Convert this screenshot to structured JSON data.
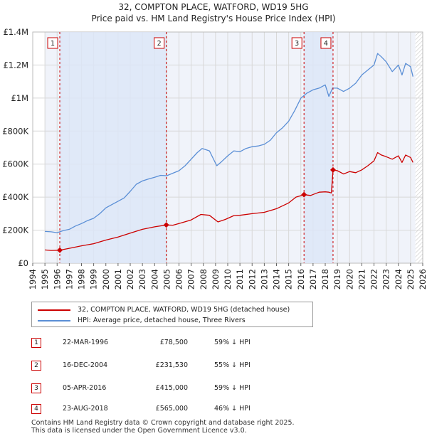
{
  "chart_data": {
    "type": "line",
    "title": "32, COMPTON PLACE, WATFORD, WD19 5HG",
    "subtitle": "Price paid vs. HM Land Registry's House Price Index (HPI)",
    "xlim": [
      1994,
      2026
    ],
    "ylim": [
      0,
      1400000
    ],
    "x_ticks": [
      "1994",
      "1995",
      "1996",
      "1997",
      "1998",
      "1999",
      "2000",
      "2001",
      "2002",
      "2003",
      "2004",
      "2005",
      "2006",
      "2007",
      "2008",
      "2009",
      "2010",
      "2011",
      "2012",
      "2013",
      "2014",
      "2015",
      "2016",
      "2017",
      "2018",
      "2019",
      "2020",
      "2021",
      "2022",
      "2023",
      "2024",
      "2025",
      "2026"
    ],
    "y_ticks": [
      {
        "value": 0,
        "label": "£0"
      },
      {
        "value": 200000,
        "label": "£200K"
      },
      {
        "value": 400000,
        "label": "£400K"
      },
      {
        "value": 600000,
        "label": "£600K"
      },
      {
        "value": 800000,
        "label": "£800K"
      },
      {
        "value": 1000000,
        "label": "£1M"
      },
      {
        "value": 1200000,
        "label": "£1.2M"
      },
      {
        "value": 1400000,
        "label": "£1.4M"
      }
    ],
    "data_start": 1995,
    "data_end": 2025.4,
    "series": [
      {
        "name": "32, COMPTON PLACE, WATFORD, WD19 5HG (detached house)",
        "color": "#cc0000",
        "points": [
          [
            1995,
            80000
          ],
          [
            1995.5,
            77000
          ],
          [
            1996.22,
            78500
          ],
          [
            1997,
            90000
          ],
          [
            1998,
            105000
          ],
          [
            1999,
            118000
          ],
          [
            2000,
            140000
          ],
          [
            2001,
            158000
          ],
          [
            2002,
            182000
          ],
          [
            2003,
            205000
          ],
          [
            2004,
            220000
          ],
          [
            2004.96,
            231530
          ],
          [
            2005.5,
            230000
          ],
          [
            2006,
            240000
          ],
          [
            2007,
            262000
          ],
          [
            2007.8,
            295000
          ],
          [
            2008.5,
            290000
          ],
          [
            2009.2,
            250000
          ],
          [
            2009.8,
            265000
          ],
          [
            2010.5,
            288000
          ],
          [
            2011,
            290000
          ],
          [
            2012,
            300000
          ],
          [
            2013,
            308000
          ],
          [
            2014,
            330000
          ],
          [
            2015,
            365000
          ],
          [
            2015.6,
            400000
          ],
          [
            2016.26,
            415000
          ],
          [
            2016.8,
            410000
          ],
          [
            2017.5,
            430000
          ],
          [
            2018,
            432000
          ],
          [
            2018.3,
            430000
          ],
          [
            2018.5,
            425000
          ],
          [
            2018.64,
            565000
          ],
          [
            2019,
            560000
          ],
          [
            2019.5,
            540000
          ],
          [
            2020,
            555000
          ],
          [
            2020.5,
            548000
          ],
          [
            2021,
            565000
          ],
          [
            2021.5,
            590000
          ],
          [
            2022,
            620000
          ],
          [
            2022.3,
            670000
          ],
          [
            2022.6,
            655000
          ],
          [
            2023,
            645000
          ],
          [
            2023.5,
            630000
          ],
          [
            2024,
            650000
          ],
          [
            2024.3,
            610000
          ],
          [
            2024.6,
            655000
          ],
          [
            2025,
            640000
          ],
          [
            2025.2,
            610000
          ]
        ]
      },
      {
        "name": "HPI: Average price, detached house, Three Rivers",
        "color": "#5b8fd6",
        "points": [
          [
            1995,
            192000
          ],
          [
            1995.5,
            190000
          ],
          [
            1996,
            185000
          ],
          [
            1996.5,
            197000
          ],
          [
            1997,
            205000
          ],
          [
            1997.5,
            225000
          ],
          [
            1998,
            240000
          ],
          [
            1998.5,
            258000
          ],
          [
            1999,
            272000
          ],
          [
            1999.5,
            300000
          ],
          [
            2000,
            335000
          ],
          [
            2000.5,
            355000
          ],
          [
            2001,
            375000
          ],
          [
            2001.5,
            395000
          ],
          [
            2002,
            435000
          ],
          [
            2002.5,
            478000
          ],
          [
            2003,
            498000
          ],
          [
            2003.5,
            510000
          ],
          [
            2004,
            520000
          ],
          [
            2004.5,
            532000
          ],
          [
            2005,
            530000
          ],
          [
            2005.5,
            545000
          ],
          [
            2006,
            560000
          ],
          [
            2006.5,
            590000
          ],
          [
            2007,
            630000
          ],
          [
            2007.5,
            670000
          ],
          [
            2007.9,
            695000
          ],
          [
            2008.5,
            680000
          ],
          [
            2009.1,
            590000
          ],
          [
            2009.5,
            615000
          ],
          [
            2010,
            650000
          ],
          [
            2010.5,
            680000
          ],
          [
            2011,
            675000
          ],
          [
            2011.5,
            695000
          ],
          [
            2012,
            705000
          ],
          [
            2012.5,
            710000
          ],
          [
            2013,
            720000
          ],
          [
            2013.5,
            745000
          ],
          [
            2014,
            790000
          ],
          [
            2014.5,
            820000
          ],
          [
            2015,
            860000
          ],
          [
            2015.5,
            925000
          ],
          [
            2016,
            1000000
          ],
          [
            2016.5,
            1030000
          ],
          [
            2017,
            1050000
          ],
          [
            2017.5,
            1060000
          ],
          [
            2018,
            1080000
          ],
          [
            2018.3,
            1010000
          ],
          [
            2018.6,
            1060000
          ],
          [
            2019,
            1060000
          ],
          [
            2019.5,
            1040000
          ],
          [
            2020,
            1060000
          ],
          [
            2020.5,
            1090000
          ],
          [
            2021,
            1140000
          ],
          [
            2021.5,
            1170000
          ],
          [
            2022,
            1200000
          ],
          [
            2022.3,
            1270000
          ],
          [
            2022.6,
            1250000
          ],
          [
            2023,
            1220000
          ],
          [
            2023.5,
            1160000
          ],
          [
            2024,
            1200000
          ],
          [
            2024.3,
            1140000
          ],
          [
            2024.6,
            1210000
          ],
          [
            2025,
            1190000
          ],
          [
            2025.2,
            1130000
          ]
        ]
      }
    ],
    "sales": [
      {
        "num": "1",
        "date": "22-MAR-1996",
        "price": "£78,500",
        "hpi": "59% ↓ HPI",
        "x": 1996.22,
        "y": 78500
      },
      {
        "num": "2",
        "date": "16-DEC-2004",
        "price": "£231,530",
        "hpi": "55% ↓ HPI",
        "x": 2004.96,
        "y": 231530
      },
      {
        "num": "3",
        "date": "05-APR-2016",
        "price": "£415,000",
        "hpi": "59% ↓ HPI",
        "x": 2016.26,
        "y": 415000
      },
      {
        "num": "4",
        "date": "23-AUG-2018",
        "price": "£565,000",
        "hpi": "46% ↓ HPI",
        "x": 2018.64,
        "y": 565000
      }
    ],
    "shaded_spans": [
      [
        1996.22,
        2004.96
      ],
      [
        2016.26,
        2018.64
      ]
    ],
    "colors": {
      "red": "#cc0000",
      "blue": "#5b8fd6",
      "shade": "#dde6f7",
      "grid": "#d8d8d8",
      "plot_bg": "#f0f3fa"
    }
  },
  "legend": {
    "items": [
      {
        "label": "32, COMPTON PLACE, WATFORD, WD19 5HG (detached house)",
        "color": "#cc0000"
      },
      {
        "label": "HPI: Average price, detached house, Three Rivers",
        "color": "#5b8fd6"
      }
    ]
  },
  "footer": {
    "line1": "Contains HM Land Registry data © Crown copyright and database right 2025.",
    "line2": "This data is licensed under the Open Government Licence v3.0."
  }
}
